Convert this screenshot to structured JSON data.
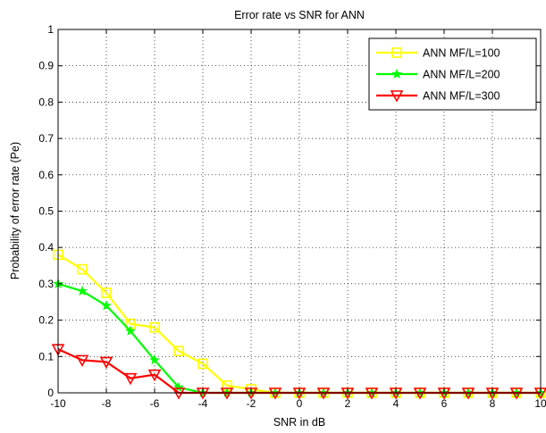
{
  "chart_data": {
    "type": "line",
    "title": "Error rate vs SNR for ANN",
    "xlabel": "SNR in dB",
    "ylabel": "Probability of error rate (Pe)",
    "xlim": [
      -10,
      10
    ],
    "ylim": [
      0,
      1
    ],
    "x_ticks": [
      -10,
      -8,
      -6,
      -4,
      -2,
      0,
      2,
      4,
      6,
      8,
      10
    ],
    "y_ticks": [
      0,
      0.1,
      0.2,
      0.3,
      0.4,
      0.5,
      0.6,
      0.7,
      0.8,
      0.9,
      1
    ],
    "grid": "dotted",
    "legend_position": "top-right",
    "x": [
      -10,
      -9,
      -8,
      -7,
      -6,
      -5,
      -4,
      -3,
      -2,
      -1,
      0,
      1,
      2,
      3,
      4,
      5,
      6,
      7,
      8,
      9,
      10
    ],
    "series": [
      {
        "name": "ANN MF/L=100",
        "color": "#ffff00",
        "marker": "square",
        "values": [
          0.38,
          0.34,
          0.275,
          0.19,
          0.18,
          0.115,
          0.08,
          0.02,
          0.01,
          0,
          0,
          0,
          0,
          0,
          0,
          0,
          0,
          0,
          0,
          0,
          0
        ]
      },
      {
        "name": "ANN MF/L=200",
        "color": "#00ff00",
        "marker": "star",
        "values": [
          0.3,
          0.28,
          0.24,
          0.17,
          0.09,
          0.015,
          0,
          0,
          0,
          0,
          0,
          0,
          0,
          0,
          0,
          0,
          0,
          0,
          0,
          0,
          0
        ]
      },
      {
        "name": "ANN MF/L=300",
        "color": "#ff0000",
        "marker": "triangle-down",
        "values": [
          0.12,
          0.09,
          0.085,
          0.04,
          0.05,
          0,
          0,
          0,
          0,
          0,
          0,
          0,
          0,
          0,
          0,
          0,
          0,
          0,
          0,
          0,
          0
        ]
      }
    ]
  }
}
